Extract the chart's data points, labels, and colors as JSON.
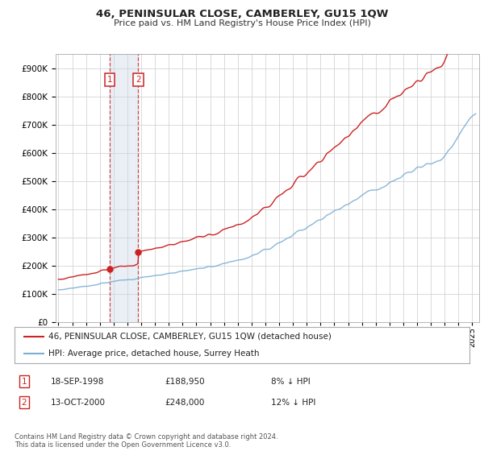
{
  "title": "46, PENINSULAR CLOSE, CAMBERLEY, GU15 1QW",
  "subtitle": "Price paid vs. HM Land Registry's House Price Index (HPI)",
  "legend_line1": "46, PENINSULAR CLOSE, CAMBERLEY, GU15 1QW (detached house)",
  "legend_line2": "HPI: Average price, detached house, Surrey Heath",
  "transaction1_date": "18-SEP-1998",
  "transaction1_price": "£188,950",
  "transaction1_hpi": "8% ↓ HPI",
  "transaction2_date": "13-OCT-2000",
  "transaction2_price": "£248,000",
  "transaction2_hpi": "12% ↓ HPI",
  "footer": "Contains HM Land Registry data © Crown copyright and database right 2024.\nThis data is licensed under the Open Government Licence v3.0.",
  "hpi_color": "#7bafd4",
  "price_color": "#cc2222",
  "vline_color": "#cc2222",
  "shade_color": "#c8d8e8",
  "box_color": "#cc2222",
  "grid_color": "#cccccc",
  "bg_color": "#ffffff",
  "ylim": [
    0,
    950000
  ],
  "yticks": [
    0,
    100000,
    200000,
    300000,
    400000,
    500000,
    600000,
    700000,
    800000,
    900000
  ],
  "x_start_year": 1995,
  "x_end_year": 2025,
  "transaction1_year": 1998.72,
  "transaction2_year": 2000.79,
  "transaction1_price_val": 188950,
  "transaction2_price_val": 248000
}
